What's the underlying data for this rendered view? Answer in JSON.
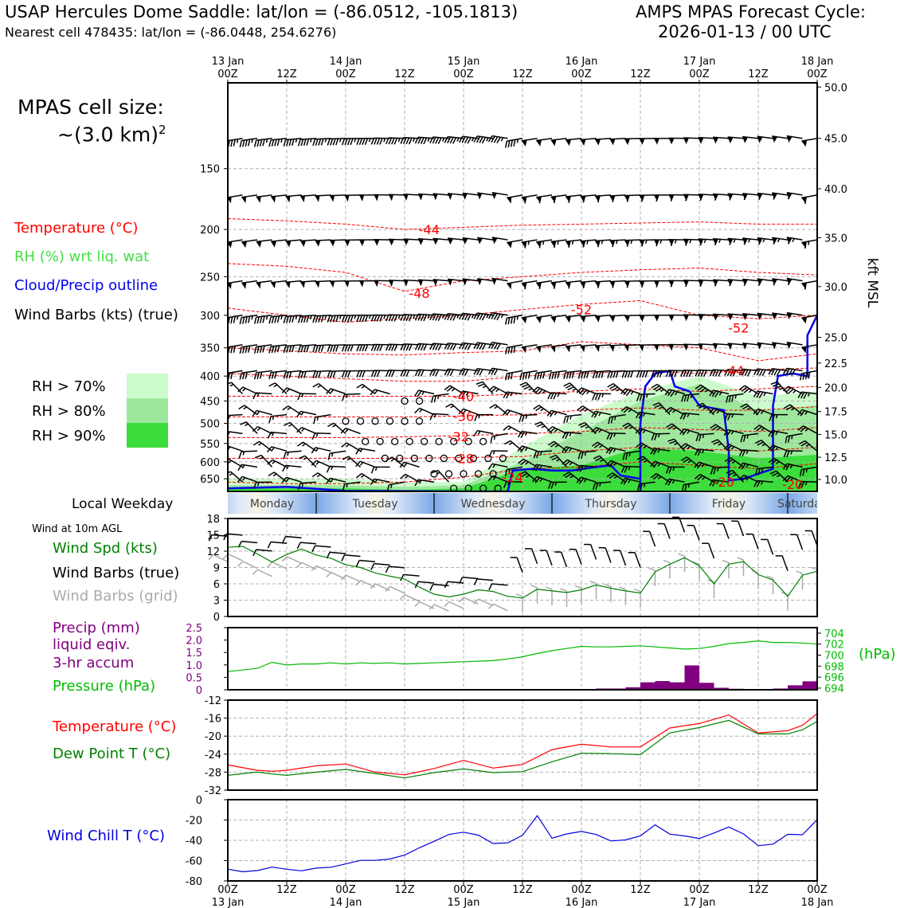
{
  "header": {
    "title_left": "USAP Hercules Dome Saddle: lat/lon = (-86.0512, -105.1813)",
    "subtitle_left": "Nearest cell 478435: lat/lon = (-86.0448, 254.6276)",
    "title_right_1": "AMPS MPAS Forecast Cycle:",
    "title_right_2": "2026-01-13 / 00 UTC"
  },
  "cell_size": {
    "line1": "MPAS cell size:",
    "line2": "~(3.0 km)",
    "sup": "2"
  },
  "legend": {
    "temperature": "Temperature (°C)",
    "rh": "RH (%) wrt liq. wat",
    "cloud": "Cloud/Precip outline",
    "barbs": "Wind Barbs (kts) (true)",
    "rh_levels": [
      {
        "label": "RH > 70%",
        "color": "#ccfccc"
      },
      {
        "label": "RH > 80%",
        "color": "#9ee89e"
      },
      {
        "label": "RH > 90%",
        "color": "#3cdc3c"
      }
    ]
  },
  "colors": {
    "temperature": "#ff0000",
    "rh": "#33dd33",
    "cloud": "#0000ee",
    "barbs": "#000000",
    "grid_barbs": "#aaaaaa",
    "precip": "#800080",
    "pressure": "#00bb00",
    "dewpoint": "#008000",
    "windchill": "#0000dd"
  },
  "time_axis": {
    "top_labels": [
      {
        "h": 0,
        "l1": "13 Jan",
        "l2": "00Z"
      },
      {
        "h": 12,
        "l1": "",
        "l2": "12Z"
      },
      {
        "h": 24,
        "l1": "14 Jan",
        "l2": "00Z"
      },
      {
        "h": 36,
        "l1": "",
        "l2": "12Z"
      },
      {
        "h": 48,
        "l1": "15 Jan",
        "l2": "00Z"
      },
      {
        "h": 60,
        "l1": "",
        "l2": "12Z"
      },
      {
        "h": 72,
        "l1": "16 Jan",
        "l2": "00Z"
      },
      {
        "h": 84,
        "l1": "",
        "l2": "12Z"
      },
      {
        "h": 96,
        "l1": "17 Jan",
        "l2": "00Z"
      },
      {
        "h": 108,
        "l1": "",
        "l2": "12Z"
      },
      {
        "h": 120,
        "l1": "18 Jan",
        "l2": "00Z"
      }
    ],
    "bottom_labels": [
      {
        "h": 0,
        "l1": "00Z",
        "l2": "13 Jan"
      },
      {
        "h": 12,
        "l1": "12Z",
        "l2": ""
      },
      {
        "h": 24,
        "l1": "00Z",
        "l2": "14 Jan"
      },
      {
        "h": 36,
        "l1": "12Z",
        "l2": ""
      },
      {
        "h": 48,
        "l1": "00Z",
        "l2": "15 Jan"
      },
      {
        "h": 60,
        "l1": "12Z",
        "l2": ""
      },
      {
        "h": 72,
        "l1": "00Z",
        "l2": "16 Jan"
      },
      {
        "h": 84,
        "l1": "12Z",
        "l2": ""
      },
      {
        "h": 96,
        "l1": "00Z",
        "l2": "17 Jan"
      },
      {
        "h": 108,
        "l1": "12Z",
        "l2": ""
      },
      {
        "h": 120,
        "l1": "00Z",
        "l2": "18 Jan"
      }
    ]
  },
  "weekday": {
    "label": "Local Weekday",
    "days": [
      {
        "name": "Monday",
        "start": -6,
        "end": 18
      },
      {
        "name": "Tuesday",
        "start": 18,
        "end": 42
      },
      {
        "name": "Wednesday",
        "start": 42,
        "end": 66
      },
      {
        "name": "Thursday",
        "start": 66,
        "end": 90
      },
      {
        "name": "Friday",
        "start": 90,
        "end": 114
      },
      {
        "name": "Saturday",
        "start": 114,
        "end": 138
      }
    ]
  },
  "chart_data": [
    {
      "type": "heatmap",
      "panel": "profile",
      "x_range_hours": [
        0,
        120
      ],
      "pressure_range_hPa": [
        690,
        100
      ],
      "y_ticks_left_hPa": [
        150,
        200,
        250,
        300,
        350,
        400,
        450,
        500,
        550,
        600,
        650
      ],
      "y_ticks_right_kft": [
        50.0,
        45.0,
        40.0,
        35.0,
        30.0,
        25.0,
        22.5,
        20.0,
        17.5,
        15.0,
        12.5,
        10.0
      ],
      "y_ticks_right_hPa": [
        102,
        130,
        165,
        208,
        262,
        333,
        376,
        422,
        473,
        527,
        587,
        652
      ],
      "right_axis_label": "kft MSL",
      "temperature_labels": [
        {
          "text": "-44",
          "h": 41,
          "p": 200
        },
        {
          "text": "-48",
          "h": 39,
          "p": 270
        },
        {
          "text": "-52",
          "h": 72,
          "p": 292
        },
        {
          "text": "-52",
          "h": 104,
          "p": 318
        },
        {
          "text": "-44",
          "h": 103,
          "p": 389
        },
        {
          "text": "-40",
          "h": 48,
          "p": 440
        },
        {
          "text": "-36",
          "h": 48,
          "p": 483
        },
        {
          "text": "-32",
          "h": 47,
          "p": 532
        },
        {
          "text": "-28",
          "h": 48,
          "p": 590
        },
        {
          "text": "-24",
          "h": 58,
          "p": 645
        },
        {
          "text": "-20",
          "h": 101,
          "p": 660
        },
        {
          "text": "-20",
          "h": 115,
          "p": 667
        }
      ],
      "temperature_isotherms_hPa": {
        "hours": [
          0,
          12,
          24,
          36,
          48,
          60,
          72,
          84,
          96,
          108,
          120
        ],
        "lines": [
          [
            190,
            192,
            195,
            200,
            198,
            196,
            195,
            194,
            193,
            195,
            195
          ],
          [
            235,
            238,
            245,
            268,
            255,
            250,
            245,
            242,
            240,
            245,
            248
          ],
          [
            290,
            300,
            310,
            305,
            300,
            292,
            285,
            280,
            300,
            305,
            300
          ],
          [
            350,
            355,
            360,
            362,
            358,
            355,
            340,
            345,
            350,
            372,
            360
          ],
          [
            395,
            400,
            405,
            410,
            410,
            400,
            395,
            390,
            395,
            388,
            385
          ],
          [
            440,
            440,
            440,
            440,
            440,
            435,
            430,
            425,
            430,
            425,
            420
          ],
          [
            485,
            485,
            485,
            485,
            483,
            480,
            470,
            465,
            470,
            470,
            462
          ],
          [
            535,
            535,
            535,
            533,
            530,
            525,
            520,
            510,
            515,
            520,
            510
          ],
          [
            590,
            590,
            590,
            590,
            588,
            585,
            570,
            560,
            565,
            570,
            560
          ],
          [
            660,
            665,
            665,
            660,
            645,
            620,
            615,
            600,
            610,
            620,
            605
          ]
        ]
      },
      "rh_regions": [
        {
          "level": 70,
          "h_start": 0,
          "h_end": 120,
          "p_top_by_hour": [
            650,
            650,
            650,
            660,
            660,
            560,
            480,
            430,
            400,
            440,
            430
          ]
        },
        {
          "level": 80,
          "h_start": 0,
          "h_end": 120,
          "p_top_by_hour": [
            670,
            670,
            670,
            675,
            670,
            600,
            520,
            450,
            415,
            470,
            460
          ]
        },
        {
          "level": 90,
          "h_start": 0,
          "h_end": 120,
          "p_top_by_hour": [
            680,
            680,
            680,
            685,
            680,
            620,
            610,
            560,
            570,
            590,
            580
          ]
        }
      ],
      "cloud_outline_hPa": {
        "points": [
          [
            84,
            690
          ],
          [
            84,
            500
          ],
          [
            85,
            420
          ],
          [
            87,
            395
          ],
          [
            90,
            390
          ],
          [
            91,
            420
          ],
          [
            94,
            430
          ],
          [
            96,
            460
          ],
          [
            101,
            470
          ],
          [
            102,
            570
          ],
          [
            102,
            655
          ],
          [
            105,
            650
          ],
          [
            107,
            640
          ],
          [
            111,
            620
          ],
          [
            111,
            460
          ],
          [
            112,
            400
          ],
          [
            115,
            395
          ],
          [
            118,
            400
          ],
          [
            118,
            330
          ],
          [
            120,
            300
          ]
        ],
        "lower": [
          [
            0,
            680
          ],
          [
            12,
            675
          ],
          [
            24,
            688
          ],
          [
            48,
            690
          ],
          [
            57,
            690
          ],
          [
            58,
            625
          ],
          [
            62,
            620
          ],
          [
            66,
            625
          ],
          [
            70,
            625
          ],
          [
            75,
            615
          ],
          [
            78,
            610
          ],
          [
            80,
            640
          ],
          [
            84,
            650
          ]
        ]
      },
      "wind_barbs_sample": {
        "levels_hPa": [
          130,
          170,
          210,
          255,
          300,
          345,
          390,
          435,
          480,
          525,
          570,
          615,
          660
        ],
        "speed_kts_by_level": [
          45,
          50,
          55,
          50,
          45,
          40,
          30,
          25,
          15,
          15,
          15,
          15,
          15
        ],
        "calm_rings": [
          {
            "p": 450,
            "h_start": 36,
            "h_end": 40
          },
          {
            "p": 495,
            "h_start": 24,
            "h_end": 40
          },
          {
            "p": 545,
            "h_start": 28,
            "h_end": 52
          },
          {
            "p": 590,
            "h_start": 32,
            "h_end": 56
          },
          {
            "p": 635,
            "h_start": 42,
            "h_end": 56
          },
          {
            "p": 680,
            "h_start": 46,
            "h_end": 56
          }
        ]
      }
    },
    {
      "type": "line",
      "panel": "wind",
      "top_label": "Wind at 10m AGL",
      "labels": {
        "speed": "Wind Spd (kts)",
        "barbs_true": "Wind Barbs (true)",
        "barbs_grid": "Wind Barbs (grid)"
      },
      "ylim": [
        0,
        18
      ],
      "y_ticks": [
        0,
        3,
        6,
        9,
        12,
        15,
        18
      ],
      "x": [
        0,
        3,
        6,
        9,
        12,
        15,
        18,
        21,
        24,
        27,
        30,
        33,
        36,
        39,
        42,
        45,
        48,
        51,
        54,
        57,
        60,
        63,
        66,
        69,
        72,
        75,
        78,
        81,
        84,
        87,
        90,
        93,
        96,
        99,
        102,
        105,
        108,
        111,
        114,
        117,
        120
      ],
      "wind_speed_kts": [
        12.7,
        12.9,
        11.5,
        10.0,
        11.4,
        12.4,
        11.3,
        10.7,
        9.5,
        9.0,
        8.0,
        7.4,
        6.9,
        5.4,
        4.1,
        3.6,
        4.1,
        4.9,
        4.6,
        3.7,
        3.4,
        5.0,
        4.7,
        4.4,
        4.9,
        5.8,
        5.2,
        4.7,
        4.3,
        8.2,
        9.6,
        10.8,
        9.3,
        6.0,
        9.6,
        10.1,
        7.7,
        6.7,
        3.7,
        7.6,
        8.3
      ]
    },
    {
      "type": "bar",
      "panel": "precip_pressure",
      "labels": {
        "precip": "Precip (mm)",
        "precip2": "liquid eqiv.",
        "precip3": "3-hr accum",
        "pressure": "Pressure (hPa)",
        "pressure_unit": "(hPa)"
      },
      "precip_ylim": [
        0,
        2.5
      ],
      "precip_ticks": [
        0,
        0.5,
        1.0,
        1.5,
        2.0,
        2.5
      ],
      "pressure_ylim": [
        693.7,
        705
      ],
      "pressure_ticks": [
        694,
        696,
        698,
        700,
        702,
        704
      ],
      "precip_bars": [
        {
          "h": 78,
          "v": 0.05
        },
        {
          "h": 81,
          "v": 0.05
        },
        {
          "h": 84,
          "v": 0.1
        },
        {
          "h": 87,
          "v": 0.3
        },
        {
          "h": 90,
          "v": 0.35
        },
        {
          "h": 93,
          "v": 0.3
        },
        {
          "h": 96,
          "v": 0.98
        },
        {
          "h": 99,
          "v": 0.28
        },
        {
          "h": 102,
          "v": 0.08
        },
        {
          "h": 105,
          "v": 0.04
        },
        {
          "h": 111,
          "v": 0.02
        },
        {
          "h": 114,
          "v": 0.05
        },
        {
          "h": 117,
          "v": 0.18
        },
        {
          "h": 120,
          "v": 0.34
        }
      ],
      "pressure_x": [
        0,
        3,
        6,
        9,
        12,
        15,
        18,
        21,
        24,
        27,
        30,
        33,
        36,
        39,
        42,
        45,
        48,
        51,
        54,
        57,
        60,
        63,
        66,
        69,
        72,
        75,
        78,
        81,
        84,
        87,
        90,
        93,
        96,
        99,
        102,
        105,
        108,
        111,
        114,
        117,
        120
      ],
      "pressure_hPa": [
        697.0,
        697.3,
        697.6,
        698.7,
        698.2,
        698.4,
        698.4,
        698.6,
        698.4,
        698.6,
        698.5,
        698.6,
        698.4,
        698.5,
        698.6,
        698.7,
        698.8,
        698.9,
        699.0,
        699.3,
        699.7,
        700.3,
        700.8,
        701.2,
        701.6,
        701.5,
        701.5,
        701.6,
        701.7,
        701.5,
        701.3,
        701.1,
        701.2,
        701.6,
        702.1,
        702.3,
        702.6,
        702.3,
        702.3,
        702.2,
        702.0
      ]
    },
    {
      "type": "line",
      "panel": "temperature",
      "labels": {
        "temp": "Temperature (°C)",
        "dew": "Dew Point T (°C)"
      },
      "ylim": [
        -32,
        -12
      ],
      "y_ticks": [
        -32,
        -28,
        -24,
        -20,
        -16,
        -12
      ],
      "x": [
        0,
        6,
        9,
        12,
        18,
        24,
        30,
        36,
        42,
        48,
        54,
        60,
        66,
        72,
        78,
        84,
        90,
        96,
        102,
        108,
        114,
        117,
        120
      ],
      "temperature_C": [
        -26.4,
        -27.6,
        -27.8,
        -27.6,
        -26.6,
        -26.2,
        -28.0,
        -28.6,
        -27.2,
        -25.4,
        -27.1,
        -26.3,
        -23.0,
        -21.8,
        -22.4,
        -22.4,
        -18.2,
        -17.2,
        -15.3,
        -19.3,
        -18.8,
        -17.6,
        -15.0
      ],
      "dew_point_C": [
        -28.7,
        -28.0,
        -28.4,
        -28.7,
        -28.0,
        -27.4,
        -28.3,
        -29.3,
        -28.1,
        -27.3,
        -28.1,
        -27.9,
        -25.7,
        -23.8,
        -23.9,
        -24.1,
        -19.3,
        -18.1,
        -16.5,
        -19.5,
        -19.5,
        -18.6,
        -16.7
      ]
    },
    {
      "type": "line",
      "panel": "windchill",
      "labels": {
        "wc": "Wind Chill T (°C)"
      },
      "ylim": [
        -80,
        0
      ],
      "y_ticks": [
        -80,
        -60,
        -40,
        -20,
        0
      ],
      "x": [
        0,
        3,
        6,
        9,
        12,
        15,
        18,
        21,
        24,
        27,
        30,
        33,
        36,
        39,
        42,
        45,
        48,
        51,
        54,
        57,
        60,
        63,
        66,
        69,
        72,
        75,
        78,
        81,
        84,
        87,
        90,
        93,
        96,
        99,
        102,
        105,
        108,
        111,
        114,
        117,
        120
      ],
      "wind_chill_C": [
        -68.4,
        -71.0,
        -69.8,
        -66.4,
        -68.5,
        -70.0,
        -67.4,
        -66.5,
        -63.3,
        -59.8,
        -59.8,
        -58.4,
        -54.6,
        -47.4,
        -41.0,
        -34.3,
        -32.0,
        -34.9,
        -43.1,
        -42.5,
        -35.1,
        -15.8,
        -37.9,
        -33.7,
        -31.3,
        -34.3,
        -40.6,
        -39.6,
        -35.7,
        -24.8,
        -34.0,
        -35.7,
        -38.2,
        -32.8,
        -26.9,
        -33.7,
        -45.3,
        -43.8,
        -34.1,
        -34.5,
        -19.6
      ]
    }
  ]
}
